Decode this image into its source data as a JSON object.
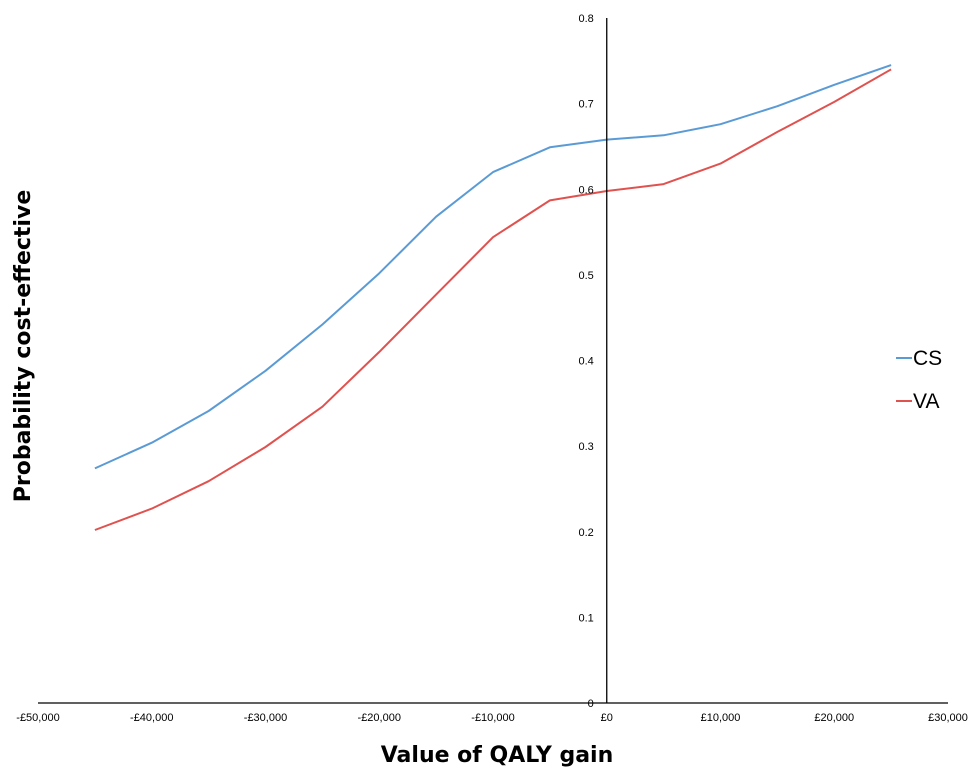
{
  "chart_data": {
    "type": "line",
    "xlabel": "Value of QALY gain",
    "ylabel": "Probability cost-effective",
    "xlim": [
      -50000,
      30000
    ],
    "ylim": [
      0,
      0.8
    ],
    "x_ticks": [
      -50000,
      -40000,
      -30000,
      -20000,
      -10000,
      0,
      10000,
      20000,
      30000
    ],
    "x_tick_labels": [
      "-£50,000",
      "-£40,000",
      "-£30,000",
      "-£20,000",
      "-£10,000",
      "£0",
      "£10,000",
      "£20,000",
      "£30,000"
    ],
    "y_ticks": [
      0,
      0.1,
      0.2,
      0.3,
      0.4,
      0.5,
      0.6,
      0.7,
      0.8
    ],
    "y_tick_labels": [
      "0",
      "0.1",
      "0.2",
      "0.3",
      "0.4",
      "0.5",
      "0.6",
      "0.7",
      "0.8"
    ],
    "grid": false,
    "legend_position": "right",
    "x": [
      -45000,
      -40000,
      -35000,
      -30000,
      -25000,
      -20000,
      -15000,
      -10000,
      -5000,
      0,
      5000,
      10000,
      15000,
      20000,
      25000
    ],
    "series": [
      {
        "name": "CS",
        "color": "#5b9bd5",
        "values": [
          0.274,
          0.304,
          0.341,
          0.388,
          0.442,
          0.502,
          0.568,
          0.62,
          0.649,
          0.658,
          0.663,
          0.676,
          0.697,
          0.722,
          0.745
        ]
      },
      {
        "name": "VA",
        "color": "#e0524f",
        "values": [
          0.202,
          0.227,
          0.259,
          0.299,
          0.346,
          0.41,
          0.477,
          0.544,
          0.587,
          0.598,
          0.606,
          0.63,
          0.667,
          0.702,
          0.74
        ]
      }
    ]
  }
}
